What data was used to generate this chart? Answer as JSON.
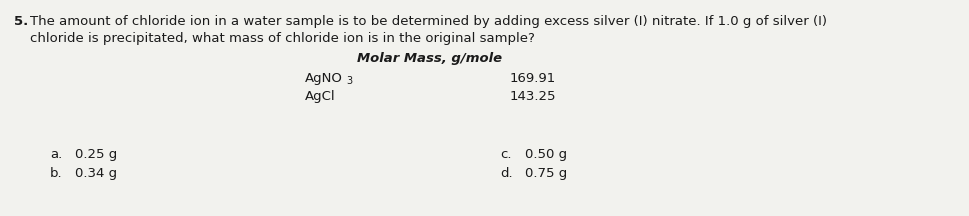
{
  "question_number": "5.",
  "question_line1": " The amount of chloride ion in a water sample is to be determined by adding excess silver (I) nitrate. If 1.0 g of silver (I)",
  "question_line2": "    chloride is precipitated, what mass of chloride ion is in the original sample?",
  "table_header": "Molar Mass, g/mole",
  "table_row1_label": "AgNO",
  "table_row1_sub": "3",
  "table_row1_value": "169.91",
  "table_row2_label": "AgCl",
  "table_row2_value": "143.25",
  "ans_a_label": "a.",
  "ans_a_val": "0.25 g",
  "ans_b_label": "b.",
  "ans_b_val": "0.34 g",
  "ans_c_label": "c.",
  "ans_c_val": "0.50 g",
  "ans_d_label": "d.",
  "ans_d_val": "0.75 g",
  "bg_color": "#f2f2ee",
  "text_color": "#1a1a1a",
  "font_size": 9.5
}
